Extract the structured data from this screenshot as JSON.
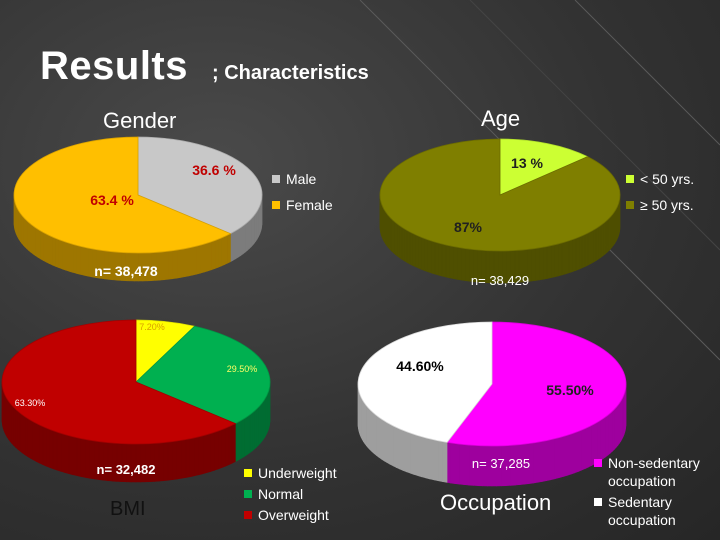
{
  "slide": {
    "title": "Results",
    "subtitle": "; Characteristics"
  },
  "chart_data": [
    {
      "type": "pie",
      "title": "Gender",
      "categories": [
        "Male",
        "Female"
      ],
      "values": [
        36.6,
        63.4
      ],
      "labels": [
        "36.6 %",
        "63.4 %"
      ],
      "colors": [
        "#c8c8c8",
        "#ffbf00"
      ],
      "n_label": "n= 38,478",
      "legend_position": "right"
    },
    {
      "type": "pie",
      "title": "Age",
      "categories": [
        "< 50 yrs.",
        "≥ 50 yrs."
      ],
      "values": [
        13,
        87
      ],
      "labels": [
        "13 %",
        "87%"
      ],
      "colors": [
        "#ccff33",
        "#7f7f00"
      ],
      "n_label": "n= 38,429",
      "legend_position": "right"
    },
    {
      "type": "pie",
      "title": "BMI",
      "categories": [
        "Underweight",
        "Normal",
        "Overweight"
      ],
      "values": [
        7.2,
        29.5,
        63.3
      ],
      "labels": [
        "7.20%",
        "29.50%",
        "63.30%"
      ],
      "colors": [
        "#ffff00",
        "#00b050",
        "#c00000"
      ],
      "n_label": "n= 32,482",
      "legend_position": "bottom-right"
    },
    {
      "type": "pie",
      "title": "Occupation",
      "categories": [
        "Non-sedentary occupation",
        "Sedentary occupation"
      ],
      "values": [
        55.5,
        44.6
      ],
      "labels": [
        "55.50%",
        "44.60%"
      ],
      "colors": [
        "#ff00ff",
        "#ffffff"
      ],
      "n_label": "n= 37,285",
      "legend_position": "bottom-right"
    }
  ]
}
